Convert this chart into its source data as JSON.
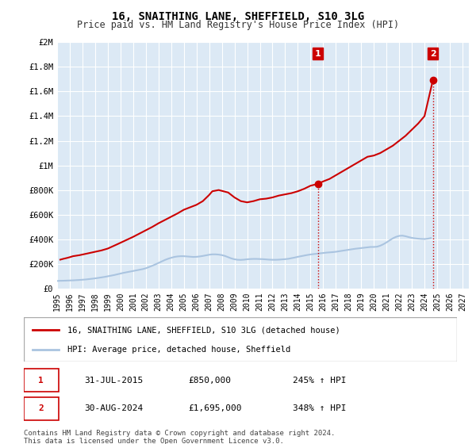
{
  "title": "16, SNAITHING LANE, SHEFFIELD, S10 3LG",
  "subtitle": "Price paid vs. HM Land Registry's House Price Index (HPI)",
  "background_color": "#ffffff",
  "plot_bg_color": "#dce9f5",
  "grid_color": "#ffffff",
  "ylim": [
    0,
    2000000
  ],
  "yticks": [
    0,
    200000,
    400000,
    600000,
    800000,
    1000000,
    1200000,
    1400000,
    1600000,
    1800000,
    2000000
  ],
  "ytick_labels": [
    "£0",
    "£200K",
    "£400K",
    "£600K",
    "£800K",
    "£1M",
    "£1.2M",
    "£1.4M",
    "£1.6M",
    "£1.8M",
    "£2M"
  ],
  "xlim_start": 1995.0,
  "xlim_end": 2027.5,
  "xtick_years": [
    1995,
    1996,
    1997,
    1998,
    1999,
    2000,
    2001,
    2002,
    2003,
    2004,
    2005,
    2006,
    2007,
    2008,
    2009,
    2010,
    2011,
    2012,
    2013,
    2014,
    2015,
    2016,
    2017,
    2018,
    2019,
    2020,
    2021,
    2022,
    2023,
    2024,
    2025,
    2026,
    2027
  ],
  "hpi_line_color": "#aac4e0",
  "price_line_color": "#cc0000",
  "marker_color": "#cc0000",
  "dotted_line_color": "#cc0000",
  "annotation_box_color": "#cc0000",
  "legend_box_color": "#000000",
  "sale1_x": 2015.583,
  "sale1_y": 850000,
  "sale1_label": "1",
  "sale2_x": 2024.667,
  "sale2_y": 1695000,
  "sale2_label": "2",
  "legend_line1": "16, SNAITHING LANE, SHEFFIELD, S10 3LG (detached house)",
  "legend_line2": "HPI: Average price, detached house, Sheffield",
  "table_row1": [
    "1",
    "31-JUL-2015",
    "£850,000",
    "245% ↑ HPI"
  ],
  "table_row2": [
    "2",
    "30-AUG-2024",
    "£1,695,000",
    "348% ↑ HPI"
  ],
  "footer_text": "Contains HM Land Registry data © Crown copyright and database right 2024.\nThis data is licensed under the Open Government Licence v3.0.",
  "hpi_data_x": [
    1995.0,
    1995.25,
    1995.5,
    1995.75,
    1996.0,
    1996.25,
    1996.5,
    1996.75,
    1997.0,
    1997.25,
    1997.5,
    1997.75,
    1998.0,
    1998.25,
    1998.5,
    1998.75,
    1999.0,
    1999.25,
    1999.5,
    1999.75,
    2000.0,
    2000.25,
    2000.5,
    2000.75,
    2001.0,
    2001.25,
    2001.5,
    2001.75,
    2002.0,
    2002.25,
    2002.5,
    2002.75,
    2003.0,
    2003.25,
    2003.5,
    2003.75,
    2004.0,
    2004.25,
    2004.5,
    2004.75,
    2005.0,
    2005.25,
    2005.5,
    2005.75,
    2006.0,
    2006.25,
    2006.5,
    2006.75,
    2007.0,
    2007.25,
    2007.5,
    2007.75,
    2008.0,
    2008.25,
    2008.5,
    2008.75,
    2009.0,
    2009.25,
    2009.5,
    2009.75,
    2010.0,
    2010.25,
    2010.5,
    2010.75,
    2011.0,
    2011.25,
    2011.5,
    2011.75,
    2012.0,
    2012.25,
    2012.5,
    2012.75,
    2013.0,
    2013.25,
    2013.5,
    2013.75,
    2014.0,
    2014.25,
    2014.5,
    2014.75,
    2015.0,
    2015.25,
    2015.5,
    2015.75,
    2016.0,
    2016.25,
    2016.5,
    2016.75,
    2017.0,
    2017.25,
    2017.5,
    2017.75,
    2018.0,
    2018.25,
    2018.5,
    2018.75,
    2019.0,
    2019.25,
    2019.5,
    2019.75,
    2020.0,
    2020.25,
    2020.5,
    2020.75,
    2021.0,
    2021.25,
    2021.5,
    2021.75,
    2022.0,
    2022.25,
    2022.5,
    2022.75,
    2023.0,
    2023.25,
    2023.5,
    2023.75,
    2024.0,
    2024.25,
    2024.5
  ],
  "hpi_data_y": [
    62000,
    63500,
    64000,
    65000,
    66000,
    67000,
    68500,
    70000,
    72000,
    74000,
    77000,
    80000,
    83000,
    87000,
    91000,
    95000,
    100000,
    105000,
    110000,
    116000,
    122000,
    128000,
    133000,
    138000,
    143000,
    148000,
    153000,
    158000,
    165000,
    175000,
    185000,
    196000,
    208000,
    220000,
    232000,
    242000,
    250000,
    257000,
    261000,
    263000,
    263000,
    261000,
    259000,
    257000,
    258000,
    261000,
    265000,
    270000,
    275000,
    278000,
    278000,
    276000,
    272000,
    265000,
    255000,
    245000,
    238000,
    234000,
    233000,
    235000,
    238000,
    240000,
    241000,
    241000,
    240000,
    239000,
    237000,
    235000,
    234000,
    234000,
    235000,
    237000,
    239000,
    242000,
    247000,
    252000,
    258000,
    263000,
    268000,
    273000,
    277000,
    280000,
    283000,
    286000,
    289000,
    292000,
    294000,
    296000,
    299000,
    303000,
    307000,
    311000,
    315000,
    319000,
    323000,
    326000,
    329000,
    332000,
    335000,
    338000,
    338000,
    340000,
    348000,
    360000,
    375000,
    392000,
    408000,
    420000,
    428000,
    430000,
    425000,
    418000,
    412000,
    408000,
    405000,
    403000,
    402000,
    405000,
    410000
  ],
  "price_data_x": [
    1995.25,
    1995.5,
    1995.75,
    1996.0,
    1996.25,
    1996.75,
    1997.25,
    1998.5,
    1999.0,
    1999.75,
    2001.0,
    2002.5,
    2003.0,
    2003.75,
    2004.5,
    2005.0,
    2005.5,
    2006.0,
    2006.5,
    2007.0,
    2007.25,
    2007.75,
    2008.5,
    2009.0,
    2009.5,
    2010.0,
    2010.5,
    2011.0,
    2011.5,
    2012.0,
    2012.5,
    2013.0,
    2013.5,
    2014.0,
    2014.5,
    2015.0,
    2015.583,
    2016.0,
    2016.5,
    2017.0,
    2017.5,
    2018.0,
    2018.5,
    2019.0,
    2019.5,
    2020.0,
    2020.5,
    2021.0,
    2021.5,
    2022.0,
    2022.5,
    2023.0,
    2023.5,
    2024.0,
    2024.667
  ],
  "price_data_y": [
    235000,
    242000,
    248000,
    255000,
    263000,
    271000,
    282000,
    310000,
    325000,
    360000,
    420000,
    500000,
    530000,
    570000,
    610000,
    640000,
    660000,
    680000,
    710000,
    760000,
    790000,
    800000,
    780000,
    740000,
    710000,
    700000,
    710000,
    725000,
    730000,
    740000,
    755000,
    765000,
    775000,
    790000,
    810000,
    835000,
    850000,
    870000,
    890000,
    920000,
    950000,
    980000,
    1010000,
    1040000,
    1070000,
    1080000,
    1100000,
    1130000,
    1160000,
    1200000,
    1240000,
    1290000,
    1340000,
    1400000,
    1695000
  ]
}
